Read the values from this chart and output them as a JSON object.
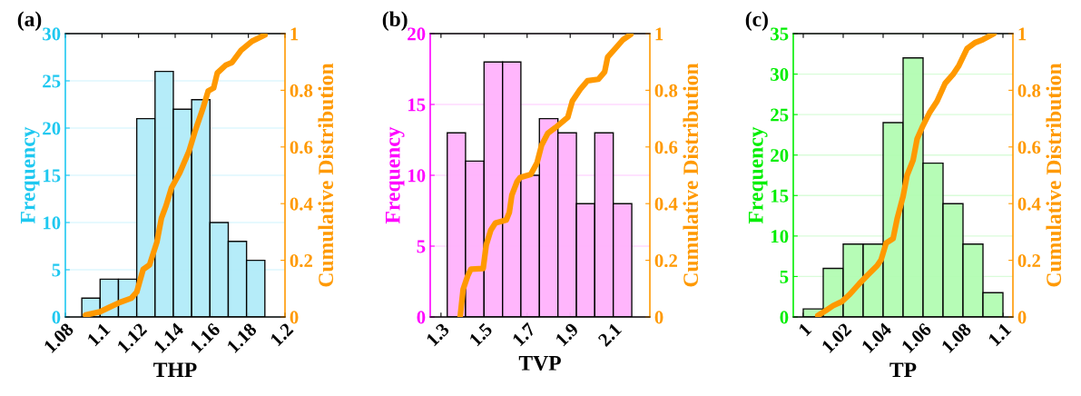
{
  "chart_data": [
    {
      "type": "histogram",
      "title": "(a)",
      "xlabel": "THP",
      "ylabel": "Frequency",
      "y2label": "Cumulative Distribution",
      "grid": "y",
      "xlim": [
        1.08,
        1.2
      ],
      "xticks": [
        1.08,
        1.1,
        1.12,
        1.14,
        1.16,
        1.18,
        1.2
      ],
      "ylim": [
        0,
        30
      ],
      "yticks": [
        0,
        5,
        10,
        15,
        20,
        25,
        30
      ],
      "y2lim": [
        0,
        1
      ],
      "y2ticks": [
        0,
        0.2,
        0.4,
        0.6,
        0.8,
        1
      ],
      "series": [
        {
          "color": "#b2ecf9",
          "bins": [
            1.089,
            1.099,
            1.109,
            1.119,
            1.129,
            1.139,
            1.149,
            1.159,
            1.169,
            1.179,
            1.189
          ],
          "values": [
            2,
            4,
            4,
            21,
            26,
            22,
            23,
            10,
            8,
            6
          ]
        },
        {
          "type": "line",
          "axis": "y2",
          "color": "#ff9900",
          "x": [
            1.091,
            1.0988,
            1.104,
            1.11,
            1.116,
            1.119,
            1.1225,
            1.126,
            1.13,
            1.1325,
            1.135,
            1.138,
            1.1425,
            1.1475,
            1.151,
            1.155,
            1.158,
            1.161,
            1.163,
            1.1675,
            1.171,
            1.176,
            1.182,
            1.189
          ],
          "values": [
            0.007,
            0.018,
            0.034,
            0.052,
            0.066,
            0.088,
            0.168,
            0.184,
            0.264,
            0.349,
            0.392,
            0.456,
            0.509,
            0.584,
            0.658,
            0.733,
            0.797,
            0.808,
            0.861,
            0.888,
            0.898,
            0.941,
            0.973,
            0.995
          ]
        }
      ]
    },
    {
      "type": "histogram",
      "title": "(b)",
      "xlabel": "TVP",
      "ylabel": "Frequency",
      "y2label": "Cumulative Distribution",
      "grid": "y",
      "xlim": [
        1.25,
        2.27
      ],
      "xticks": [
        1.3,
        1.5,
        1.7,
        1.9,
        2.1
      ],
      "ylim": [
        0,
        20
      ],
      "yticks": [
        0,
        5,
        10,
        15,
        20
      ],
      "y2lim": [
        0,
        1
      ],
      "y2ticks": [
        0,
        0.2,
        0.4,
        0.6,
        0.8,
        1
      ],
      "series": [
        {
          "color": "#ffb3fc",
          "bins": [
            1.329,
            1.414,
            1.5,
            1.586,
            1.671,
            1.757,
            1.843,
            1.929,
            2.014,
            2.1,
            2.186
          ],
          "values": [
            13,
            11,
            18,
            18,
            10,
            14,
            13,
            8,
            13,
            8
          ]
        },
        {
          "type": "line",
          "axis": "y2",
          "color": "#ff9900",
          "x": [
            1.389,
            1.403,
            1.424,
            1.439,
            1.496,
            1.51,
            1.531,
            1.553,
            1.603,
            1.617,
            1.629,
            1.653,
            1.667,
            1.717,
            1.746,
            1.767,
            1.796,
            1.831,
            1.889,
            1.91,
            1.946,
            1.981,
            2.031,
            2.06,
            2.074,
            2.11,
            2.146,
            2.181
          ],
          "values": [
            0,
            0.098,
            0.145,
            0.169,
            0.171,
            0.254,
            0.306,
            0.332,
            0.342,
            0.368,
            0.43,
            0.477,
            0.492,
            0.503,
            0.544,
            0.606,
            0.648,
            0.668,
            0.705,
            0.762,
            0.803,
            0.834,
            0.839,
            0.865,
            0.917,
            0.948,
            0.979,
            0.997
          ]
        }
      ]
    },
    {
      "type": "histogram",
      "title": "(c)",
      "xlabel": "TP",
      "ylabel": "Frequency",
      "y2label": "Cumulative Distribution",
      "grid": "y",
      "xlim": [
        0.995,
        1.105
      ],
      "xticks": [
        1,
        1.02,
        1.04,
        1.06,
        1.08,
        1.1
      ],
      "ylim": [
        0,
        35
      ],
      "yticks": [
        0,
        5,
        10,
        15,
        20,
        25,
        30,
        35
      ],
      "y2lim": [
        0,
        1
      ],
      "y2ticks": [
        0,
        0.2,
        0.4,
        0.6,
        0.8,
        1
      ],
      "series": [
        {
          "color": "#b3fcb3",
          "bins": [
            1.0,
            1.01,
            1.02,
            1.03,
            1.04,
            1.05,
            1.06,
            1.07,
            1.08,
            1.09,
            1.1
          ],
          "values": [
            1,
            6,
            9,
            9,
            24,
            32,
            19,
            14,
            9,
            3
          ]
        },
        {
          "type": "line",
          "axis": "y2",
          "color": "#ff9900",
          "x": [
            1.0073,
            1.011,
            1.015,
            1.0195,
            1.0233,
            1.028,
            1.0324,
            1.037,
            1.039,
            1.0415,
            1.045,
            1.047,
            1.05,
            1.052,
            1.055,
            1.057,
            1.0596,
            1.0634,
            1.067,
            1.071,
            1.075,
            1.078,
            1.082,
            1.086,
            1.09,
            1.0955
          ],
          "values": [
            0.005,
            0.021,
            0.04,
            0.055,
            0.08,
            0.117,
            0.149,
            0.181,
            0.202,
            0.261,
            0.277,
            0.346,
            0.426,
            0.5,
            0.553,
            0.628,
            0.67,
            0.723,
            0.761,
            0.824,
            0.856,
            0.888,
            0.947,
            0.968,
            0.979,
            1.0
          ]
        }
      ]
    }
  ]
}
